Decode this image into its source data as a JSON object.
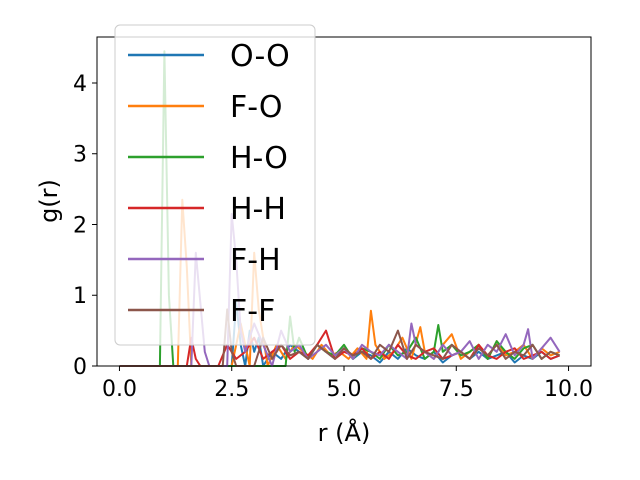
{
  "chart_data": {
    "type": "line",
    "title": "",
    "xlabel": "r (Å)",
    "ylabel": "g(r)",
    "xlim": [
      -0.5,
      10.5
    ],
    "ylim": [
      0,
      4.65
    ],
    "xticks": [
      0.0,
      2.5,
      5.0,
      7.5,
      10.0
    ],
    "xtick_labels": [
      "0.0",
      "2.5",
      "5.0",
      "7.5",
      "10.0"
    ],
    "yticks": [
      0,
      1,
      2,
      3,
      4
    ],
    "ytick_labels": [
      "0",
      "1",
      "2",
      "3",
      "4"
    ],
    "grid": false,
    "legend_position": "upper-left",
    "series": [
      {
        "name": "O-O",
        "color": "#1f77b4",
        "x": [
          0.0,
          2.5,
          2.6,
          2.7,
          2.8,
          2.9,
          3.0,
          3.1,
          3.2,
          3.4,
          3.6,
          3.8,
          4.0,
          4.2,
          4.4,
          4.6,
          4.8,
          5.0,
          5.2,
          5.4,
          5.6,
          5.8,
          6.0,
          6.2,
          6.4,
          6.6,
          6.8,
          7.0,
          7.2,
          7.4,
          7.6,
          7.8,
          8.0,
          8.2,
          8.4,
          8.6,
          8.8,
          9.0,
          9.2,
          9.4,
          9.6,
          9.8
        ],
        "y": [
          0.0,
          0.0,
          0.9,
          0.3,
          0.0,
          0.5,
          0.2,
          0.4,
          0.0,
          0.2,
          0.1,
          0.3,
          0.2,
          0.1,
          0.3,
          0.2,
          0.1,
          0.25,
          0.1,
          0.2,
          0.15,
          0.05,
          0.2,
          0.1,
          0.25,
          0.15,
          0.1,
          0.2,
          0.05,
          0.15,
          0.2,
          0.1,
          0.2,
          0.1,
          0.15,
          0.2,
          0.05,
          0.15,
          0.1,
          0.2,
          0.1,
          0.15
        ]
      },
      {
        "name": "F-O",
        "color": "#ff7f0e",
        "x": [
          0.0,
          1.3,
          1.4,
          1.5,
          1.6,
          2.5,
          2.7,
          2.9,
          3.0,
          3.1,
          3.2,
          3.3,
          3.5,
          3.7,
          3.9,
          4.1,
          4.3,
          4.5,
          4.7,
          4.9,
          5.1,
          5.3,
          5.5,
          5.6,
          5.7,
          5.9,
          6.1,
          6.3,
          6.5,
          6.7,
          6.8,
          7.0,
          7.2,
          7.4,
          7.6,
          7.8,
          8.0,
          8.2,
          8.4,
          8.6,
          8.8,
          9.0,
          9.2,
          9.4,
          9.6,
          9.8
        ],
        "y": [
          0.0,
          0.0,
          2.35,
          1.4,
          0.0,
          0.0,
          0.6,
          0.0,
          1.6,
          0.8,
          0.4,
          0.0,
          0.3,
          0.1,
          0.3,
          0.2,
          0.1,
          0.3,
          0.15,
          0.2,
          0.1,
          0.25,
          0.1,
          0.78,
          0.3,
          0.1,
          0.2,
          0.4,
          0.1,
          0.55,
          0.2,
          0.1,
          0.3,
          0.45,
          0.1,
          0.2,
          0.3,
          0.1,
          0.35,
          0.15,
          0.2,
          0.3,
          0.1,
          0.25,
          0.15,
          0.2
        ]
      },
      {
        "name": "H-O",
        "color": "#2ca02c",
        "x": [
          0.0,
          0.9,
          1.0,
          1.1,
          1.2,
          3.7,
          3.8,
          3.9,
          4.0,
          4.2,
          4.4,
          4.6,
          4.8,
          5.0,
          5.2,
          5.4,
          5.6,
          5.8,
          6.0,
          6.2,
          6.4,
          6.6,
          6.8,
          7.0,
          7.1,
          7.2,
          7.4,
          7.6,
          7.8,
          8.0,
          8.2,
          8.4,
          8.6,
          8.8,
          9.0,
          9.2,
          9.4,
          9.6,
          9.8
        ],
        "y": [
          0.0,
          0.0,
          4.45,
          1.0,
          0.0,
          0.0,
          0.7,
          0.2,
          0.4,
          0.1,
          0.3,
          0.2,
          0.15,
          0.3,
          0.1,
          0.25,
          0.2,
          0.1,
          0.3,
          0.15,
          0.2,
          0.4,
          0.1,
          0.2,
          0.58,
          0.2,
          0.3,
          0.15,
          0.2,
          0.3,
          0.1,
          0.35,
          0.2,
          0.1,
          0.25,
          0.3,
          0.1,
          0.2,
          0.15
        ]
      },
      {
        "name": "H-H",
        "color": "#d62728",
        "x": [
          0.0,
          1.5,
          1.6,
          1.7,
          1.8,
          2.2,
          2.4,
          2.6,
          2.8,
          3.0,
          3.2,
          3.4,
          3.6,
          3.8,
          4.0,
          4.2,
          4.4,
          4.6,
          4.8,
          5.0,
          5.2,
          5.4,
          5.6,
          5.8,
          6.0,
          6.2,
          6.4,
          6.6,
          6.8,
          7.0,
          7.2,
          7.4,
          7.6,
          7.8,
          8.0,
          8.2,
          8.4,
          8.6,
          8.8,
          9.0,
          9.2,
          9.4,
          9.6,
          9.8
        ],
        "y": [
          0.0,
          0.0,
          0.4,
          0.1,
          0.0,
          0.0,
          0.3,
          0.1,
          0.2,
          0.4,
          0.1,
          0.2,
          0.3,
          0.1,
          0.2,
          0.15,
          0.3,
          0.5,
          0.1,
          0.2,
          0.15,
          0.25,
          0.1,
          0.2,
          0.1,
          0.3,
          0.15,
          0.1,
          0.2,
          0.25,
          0.1,
          0.15,
          0.2,
          0.1,
          0.3,
          0.15,
          0.1,
          0.2,
          0.25,
          0.1,
          0.15,
          0.2,
          0.1,
          0.15
        ]
      },
      {
        "name": "F-H",
        "color": "#9467bd",
        "x": [
          0.0,
          1.6,
          1.7,
          1.8,
          1.9,
          2.0,
          2.4,
          2.5,
          2.6,
          2.7,
          2.8,
          3.0,
          3.2,
          3.4,
          3.6,
          3.8,
          4.0,
          4.2,
          4.4,
          4.6,
          4.8,
          5.0,
          5.2,
          5.4,
          5.6,
          5.8,
          6.0,
          6.2,
          6.4,
          6.5,
          6.6,
          6.8,
          7.0,
          7.2,
          7.4,
          7.6,
          7.8,
          8.0,
          8.2,
          8.4,
          8.6,
          8.8,
          9.0,
          9.1,
          9.2,
          9.4,
          9.6,
          9.8
        ],
        "y": [
          0.0,
          0.0,
          1.6,
          0.9,
          0.2,
          0.0,
          0.0,
          2.15,
          1.5,
          0.5,
          0.2,
          0.6,
          0.3,
          0.0,
          0.5,
          0.2,
          0.3,
          0.1,
          0.2,
          0.3,
          0.15,
          0.25,
          0.1,
          0.3,
          0.2,
          0.15,
          0.3,
          0.2,
          0.1,
          0.6,
          0.3,
          0.2,
          0.1,
          0.3,
          0.15,
          0.2,
          0.35,
          0.1,
          0.3,
          0.2,
          0.45,
          0.15,
          0.3,
          0.52,
          0.1,
          0.25,
          0.4,
          0.2
        ]
      },
      {
        "name": "F-F",
        "color": "#8c564b",
        "x": [
          0.0,
          2.3,
          2.4,
          2.5,
          2.6,
          3.0,
          3.2,
          3.4,
          3.6,
          3.8,
          4.0,
          4.2,
          4.4,
          4.6,
          4.8,
          5.0,
          5.2,
          5.4,
          5.6,
          5.8,
          6.0,
          6.2,
          6.4,
          6.6,
          6.8,
          7.0,
          7.2,
          7.4,
          7.6,
          7.8,
          8.0,
          8.2,
          8.4,
          8.6,
          8.8,
          9.0,
          9.2,
          9.4,
          9.6,
          9.8
        ],
        "y": [
          0.0,
          0.0,
          0.8,
          0.2,
          0.0,
          0.0,
          0.4,
          0.1,
          0.3,
          0.15,
          0.2,
          0.1,
          0.3,
          0.2,
          0.1,
          0.25,
          0.15,
          0.2,
          0.1,
          0.3,
          0.2,
          0.5,
          0.1,
          0.3,
          0.2,
          0.15,
          0.1,
          0.3,
          0.2,
          0.1,
          0.25,
          0.15,
          0.3,
          0.1,
          0.2,
          0.15,
          0.3,
          0.1,
          0.2,
          0.15
        ]
      }
    ]
  }
}
